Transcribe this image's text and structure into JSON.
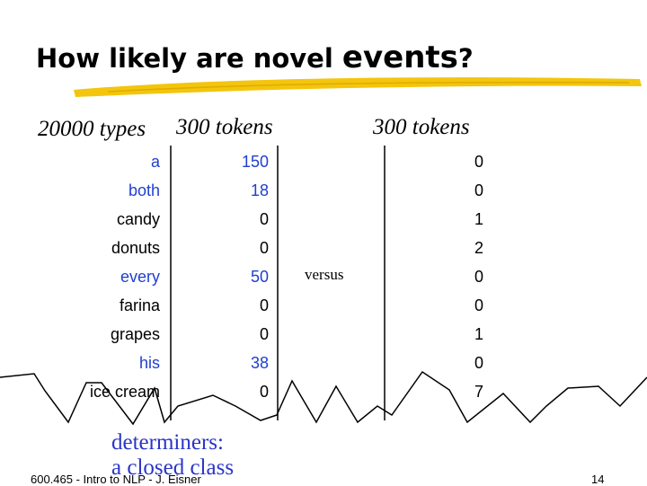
{
  "title": {
    "part1": "How likely are novel ",
    "part2": "events",
    "part3": "?"
  },
  "headers": {
    "types": "20000 types",
    "tokens_col1": "300 tokens",
    "tokens_col2": "300 tokens"
  },
  "rows": [
    {
      "word": "a",
      "count1": "150",
      "count2": "0",
      "word_color": "blue",
      "count1_color": "blue"
    },
    {
      "word": "both",
      "count1": "18",
      "count2": "0",
      "word_color": "blue",
      "count1_color": "blue"
    },
    {
      "word": "candy",
      "count1": "0",
      "count2": "1",
      "word_color": "black",
      "count1_color": "black"
    },
    {
      "word": "donuts",
      "count1": "0",
      "count2": "2",
      "word_color": "black",
      "count1_color": "black"
    },
    {
      "word": "every",
      "count1": "50",
      "count2": "0",
      "word_color": "blue",
      "count1_color": "blue"
    },
    {
      "word": "farina",
      "count1": "0",
      "count2": "0",
      "word_color": "black",
      "count1_color": "black"
    },
    {
      "word": "grapes",
      "count1": "0",
      "count2": "1",
      "word_color": "black",
      "count1_color": "black"
    },
    {
      "word": "his",
      "count1": "38",
      "count2": "0",
      "word_color": "blue",
      "count1_color": "blue"
    },
    {
      "word": "ice cream",
      "count1": "0",
      "count2": "7",
      "word_color": "black",
      "count1_color": "black"
    }
  ],
  "versus": "versus",
  "annotation": {
    "line1": "determiners:",
    "line2": "a closed class"
  },
  "footer": "600.465 - Intro to NLP - J. Eisner",
  "page_number": "14",
  "colors": {
    "highlight": "#1f3fd0",
    "annotation": "#2a35c8",
    "underline": "#f2c200"
  }
}
